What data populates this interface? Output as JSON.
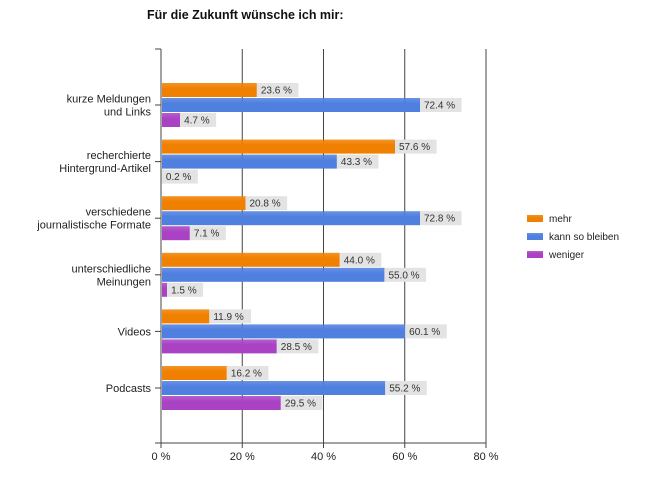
{
  "chart_data": {
    "type": "bar",
    "orientation": "horizontal",
    "title": "Für die Zukunft wünsche ich mir:",
    "categories": [
      [
        "kurze Meldungen",
        "und Links"
      ],
      [
        "recherchierte",
        "Hintergrund-Artikel"
      ],
      [
        "verschiedene",
        "journalistische Formate"
      ],
      [
        "unterschiedliche",
        "Meinungen"
      ],
      [
        "Videos"
      ],
      [
        "Podcasts"
      ]
    ],
    "series": [
      {
        "name": "mehr",
        "color": "#f08000",
        "values": [
          23.6,
          57.6,
          20.8,
          44.0,
          11.9,
          16.2
        ]
      },
      {
        "name": "kann so bleiben",
        "color": "#4f7fdf",
        "values": [
          72.4,
          43.3,
          72.8,
          55.0,
          60.1,
          55.2
        ]
      },
      {
        "name": "weniger",
        "color": "#a943c4",
        "values": [
          4.7,
          0.2,
          7.1,
          1.5,
          28.5,
          29.5
        ]
      }
    ],
    "value_labels": [
      [
        "23.6 %",
        "57.6 %",
        "20.8 %",
        "44.0 %",
        "11.9 %",
        "16.2 %"
      ],
      [
        "72.4 %",
        "43.3 %",
        "72.8 %",
        "55.0 %",
        "60.1 %",
        "55.2 %"
      ],
      [
        "4.7 %",
        "0.2 %",
        "7.1 %",
        "1.5 %",
        "28.5 %",
        "29.5 %"
      ]
    ],
    "xlim": [
      0,
      80
    ],
    "xticks": [
      0,
      20,
      40,
      60,
      80
    ],
    "xtick_labels": [
      "0 %",
      "20 %",
      "40 %",
      "60 %",
      "80 %"
    ],
    "xlabel": "",
    "ylabel": "",
    "grid": true,
    "legend": "right"
  }
}
